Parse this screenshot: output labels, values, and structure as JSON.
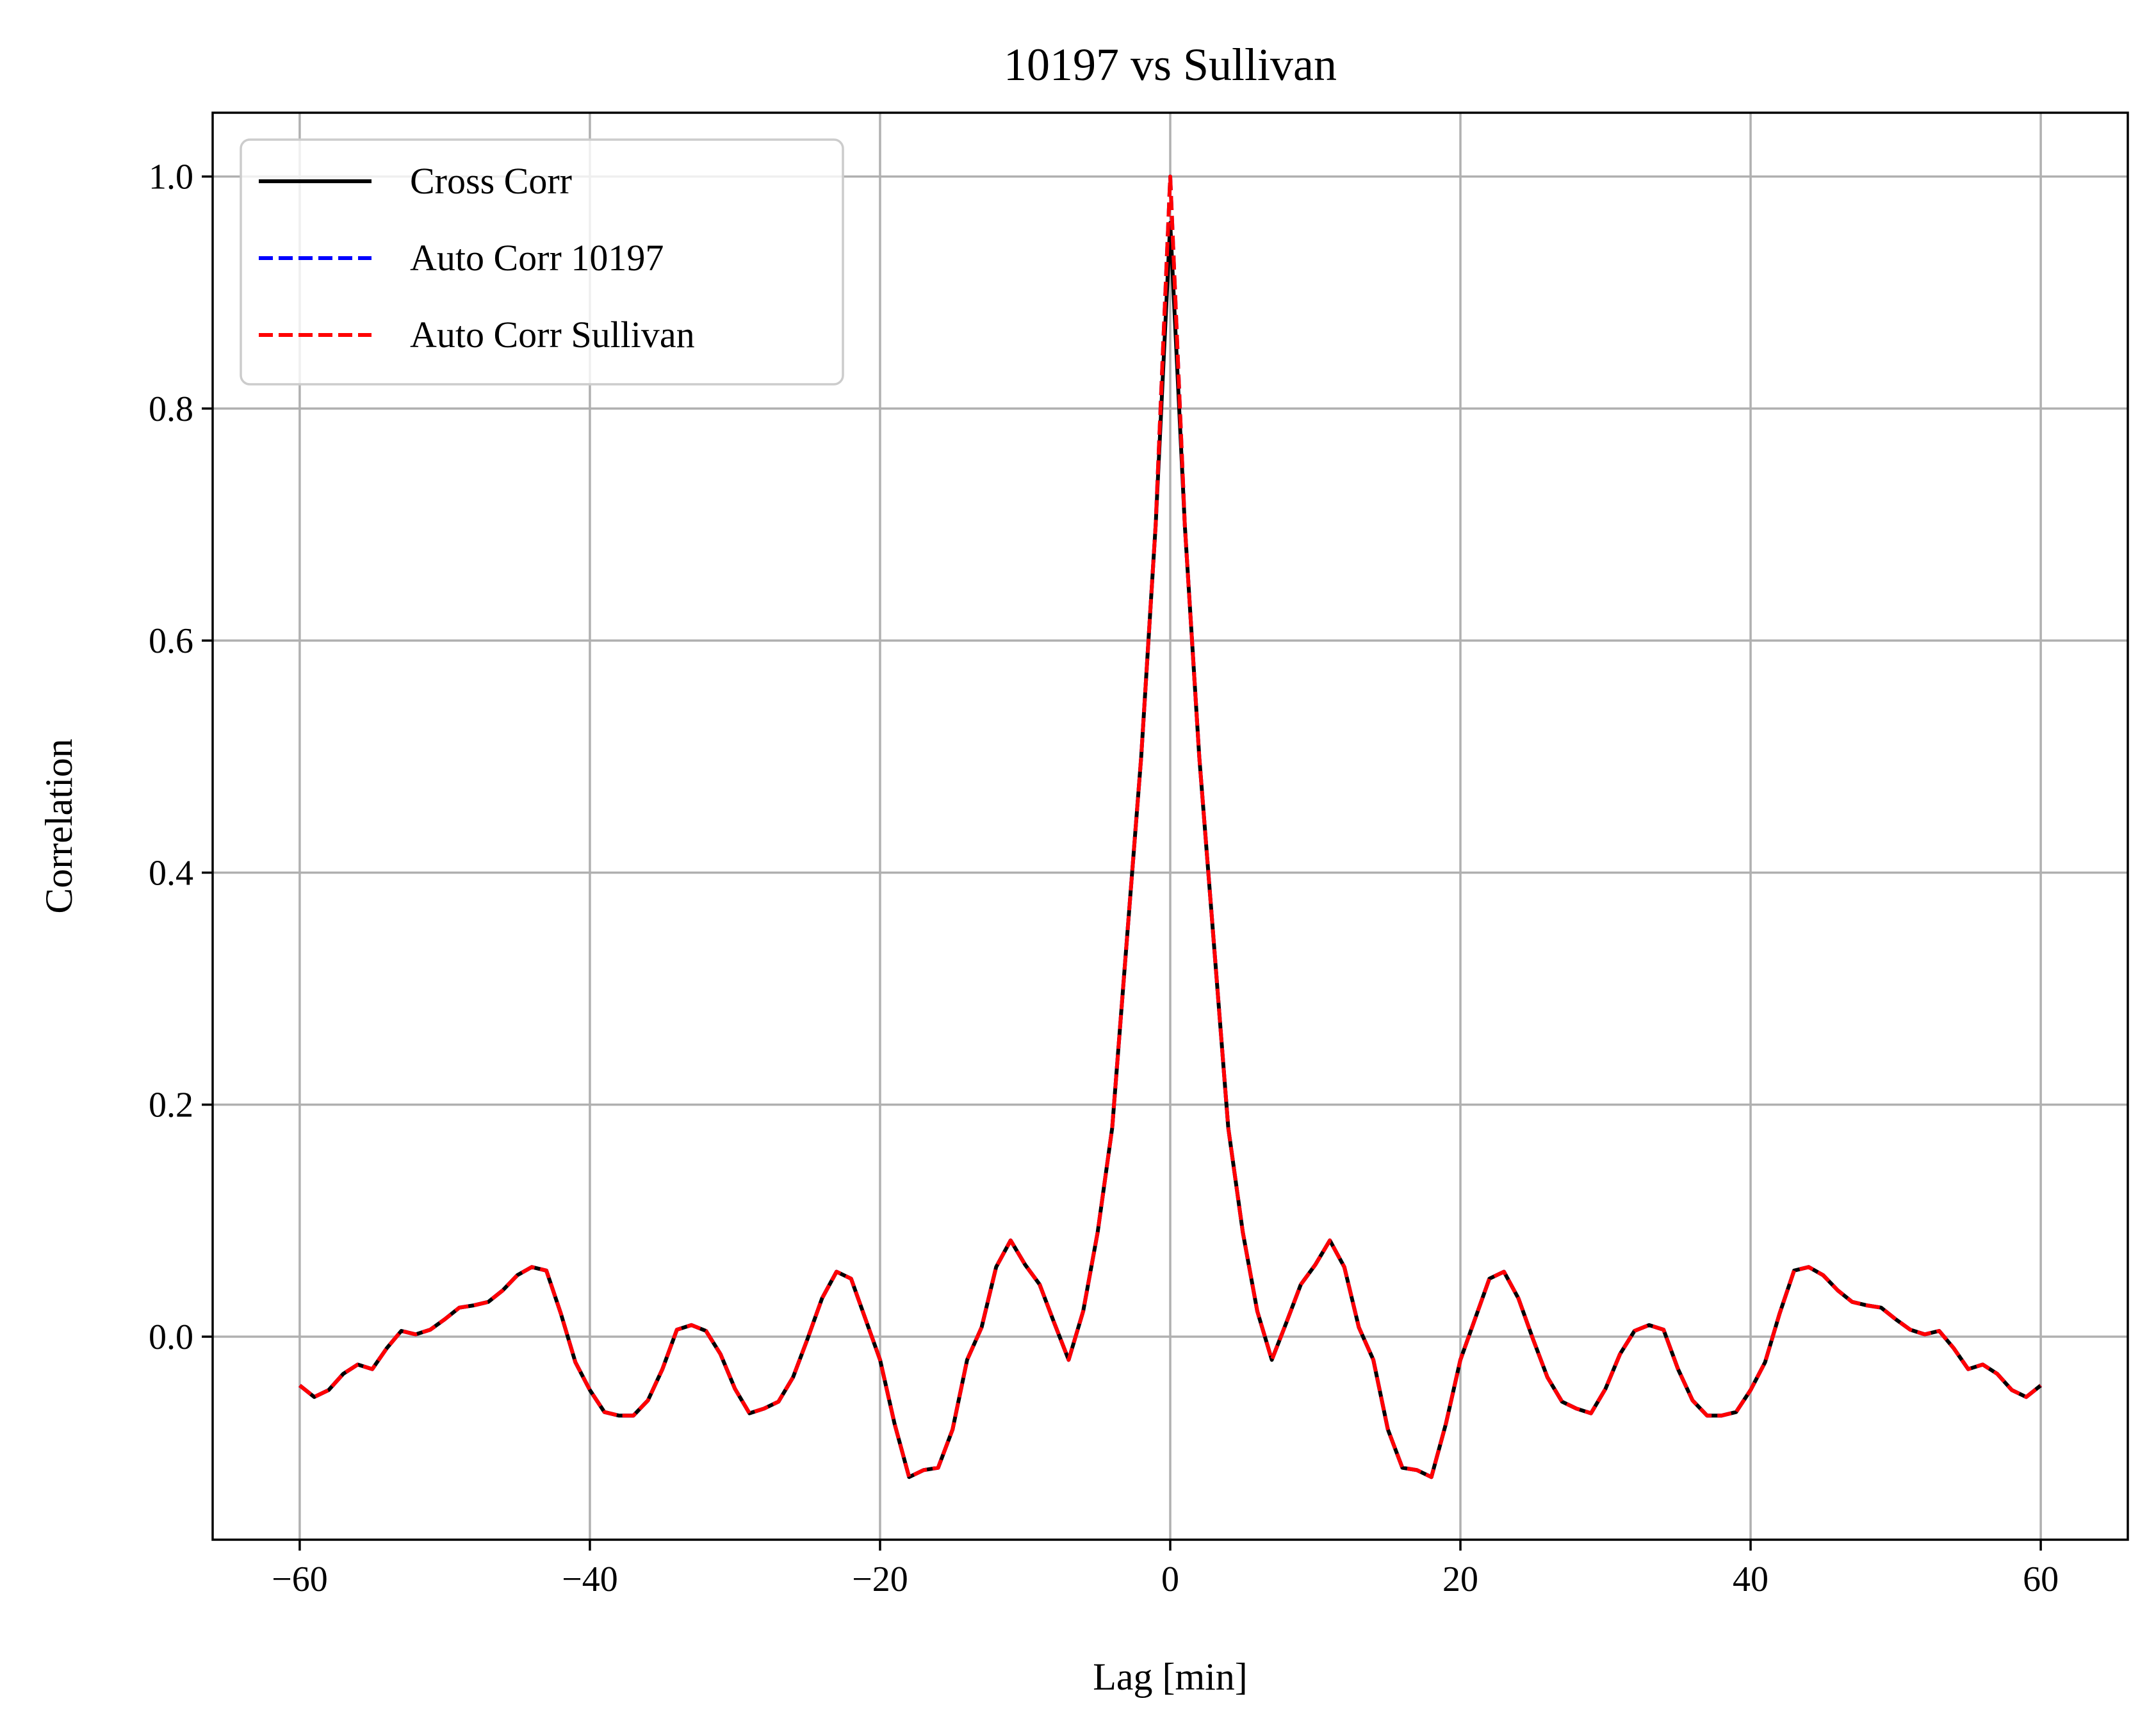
{
  "chart_data": {
    "type": "line",
    "title": "10197 vs Sullivan",
    "xlabel": "Lag [min]",
    "ylabel": "Correlation",
    "xlim": [
      -66,
      66
    ],
    "ylim": [
      -0.175,
      1.055
    ],
    "xticks": [
      -60,
      -40,
      -20,
      0,
      20,
      40,
      60
    ],
    "xtick_labels": [
      "−60",
      "−40",
      "−20",
      "0",
      "20",
      "40",
      "60"
    ],
    "yticks": [
      0.0,
      0.2,
      0.4,
      0.6,
      0.8,
      1.0
    ],
    "ytick_labels": [
      "0.0",
      "0.2",
      "0.4",
      "0.6",
      "0.8",
      "1.0"
    ],
    "grid": true,
    "legend_position": "top-left",
    "x": [
      -60,
      -59,
      -58,
      -57,
      -56,
      -55,
      -54,
      -53,
      -52,
      -51,
      -50,
      -49,
      -48,
      -47,
      -46,
      -45,
      -44,
      -43,
      -42,
      -41,
      -40,
      -39,
      -38,
      -37,
      -36,
      -35,
      -34,
      -33,
      -32,
      -31,
      -30,
      -29,
      -28,
      -27,
      -26,
      -25,
      -24,
      -23,
      -22,
      -21,
      -20,
      -19,
      -18,
      -17,
      -16,
      -15,
      -14,
      -13,
      -12,
      -11,
      -10,
      -9,
      -8,
      -7,
      -6,
      -5,
      -4,
      -3,
      -2,
      -1,
      0,
      1,
      2,
      3,
      4,
      5,
      6,
      7,
      8,
      9,
      10,
      11,
      12,
      13,
      14,
      15,
      16,
      17,
      18,
      19,
      20,
      21,
      22,
      23,
      24,
      25,
      26,
      27,
      28,
      29,
      30,
      31,
      32,
      33,
      34,
      35,
      36,
      37,
      38,
      39,
      40,
      41,
      42,
      43,
      44,
      45,
      46,
      47,
      48,
      49,
      50,
      51,
      52,
      53,
      54,
      55,
      56,
      57,
      58,
      59,
      60
    ],
    "series": [
      {
        "name": "Cross Corr",
        "color": "#000000",
        "style": "solid",
        "values": [
          -0.042,
          -0.052,
          -0.046,
          -0.032,
          -0.024,
          -0.028,
          -0.01,
          0.005,
          0.002,
          0.006,
          0.015,
          0.025,
          0.027,
          0.03,
          0.04,
          0.053,
          0.06,
          0.057,
          0.02,
          -0.022,
          -0.046,
          -0.065,
          -0.068,
          -0.068,
          -0.055,
          -0.028,
          0.006,
          0.01,
          0.005,
          -0.015,
          -0.045,
          -0.066,
          -0.062,
          -0.056,
          -0.035,
          -0.002,
          0.033,
          0.056,
          0.05,
          0.015,
          -0.02,
          -0.075,
          -0.121,
          -0.115,
          -0.113,
          -0.08,
          -0.02,
          0.008,
          0.06,
          0.083,
          0.062,
          0.045,
          0.012,
          -0.02,
          0.022,
          0.09,
          0.18,
          0.34,
          0.5,
          0.7,
          0.96,
          0.7,
          0.5,
          0.34,
          0.18,
          0.09,
          0.022,
          -0.02,
          0.012,
          0.045,
          0.062,
          0.083,
          0.06,
          0.008,
          -0.02,
          -0.08,
          -0.113,
          -0.115,
          -0.121,
          -0.075,
          -0.02,
          0.015,
          0.05,
          0.056,
          0.033,
          -0.002,
          -0.035,
          -0.056,
          -0.062,
          -0.066,
          -0.045,
          -0.015,
          0.005,
          0.01,
          0.006,
          -0.028,
          -0.055,
          -0.068,
          -0.068,
          -0.065,
          -0.046,
          -0.022,
          0.02,
          0.057,
          0.06,
          0.053,
          0.04,
          0.03,
          0.027,
          0.025,
          0.015,
          0.006,
          0.002,
          0.005,
          -0.01,
          -0.028,
          -0.024,
          -0.032,
          -0.046,
          -0.052,
          -0.042
        ]
      },
      {
        "name": "Auto Corr 10197",
        "color": "#0000ff",
        "style": "dashed",
        "values": [
          -0.042,
          -0.052,
          -0.046,
          -0.032,
          -0.024,
          -0.028,
          -0.01,
          0.005,
          0.002,
          0.006,
          0.015,
          0.025,
          0.027,
          0.03,
          0.04,
          0.053,
          0.06,
          0.057,
          0.02,
          -0.022,
          -0.046,
          -0.065,
          -0.068,
          -0.068,
          -0.055,
          -0.028,
          0.006,
          0.01,
          0.005,
          -0.015,
          -0.045,
          -0.066,
          -0.062,
          -0.056,
          -0.035,
          -0.002,
          0.033,
          0.056,
          0.05,
          0.015,
          -0.02,
          -0.075,
          -0.121,
          -0.115,
          -0.113,
          -0.08,
          -0.02,
          0.008,
          0.06,
          0.083,
          0.062,
          0.045,
          0.012,
          -0.02,
          0.022,
          0.09,
          0.18,
          0.34,
          0.5,
          0.7,
          1.0,
          0.7,
          0.5,
          0.34,
          0.18,
          0.09,
          0.022,
          -0.02,
          0.012,
          0.045,
          0.062,
          0.083,
          0.06,
          0.008,
          -0.02,
          -0.08,
          -0.113,
          -0.115,
          -0.121,
          -0.075,
          -0.02,
          0.015,
          0.05,
          0.056,
          0.033,
          -0.002,
          -0.035,
          -0.056,
          -0.062,
          -0.066,
          -0.045,
          -0.015,
          0.005,
          0.01,
          0.006,
          -0.028,
          -0.055,
          -0.068,
          -0.068,
          -0.065,
          -0.046,
          -0.022,
          0.02,
          0.057,
          0.06,
          0.053,
          0.04,
          0.03,
          0.027,
          0.025,
          0.015,
          0.006,
          0.002,
          0.005,
          -0.01,
          -0.028,
          -0.024,
          -0.032,
          -0.046,
          -0.052,
          -0.042
        ]
      },
      {
        "name": "Auto Corr Sullivan",
        "color": "#ff0000",
        "style": "dashed",
        "values": [
          -0.042,
          -0.052,
          -0.046,
          -0.032,
          -0.024,
          -0.028,
          -0.01,
          0.005,
          0.002,
          0.006,
          0.015,
          0.025,
          0.027,
          0.03,
          0.04,
          0.053,
          0.06,
          0.057,
          0.02,
          -0.022,
          -0.046,
          -0.065,
          -0.068,
          -0.068,
          -0.055,
          -0.028,
          0.006,
          0.01,
          0.005,
          -0.015,
          -0.045,
          -0.066,
          -0.062,
          -0.056,
          -0.035,
          -0.002,
          0.033,
          0.056,
          0.05,
          0.015,
          -0.02,
          -0.075,
          -0.121,
          -0.115,
          -0.113,
          -0.08,
          -0.02,
          0.008,
          0.06,
          0.083,
          0.062,
          0.045,
          0.012,
          -0.02,
          0.022,
          0.09,
          0.18,
          0.34,
          0.5,
          0.7,
          1.0,
          0.7,
          0.5,
          0.34,
          0.18,
          0.09,
          0.022,
          -0.02,
          0.012,
          0.045,
          0.062,
          0.083,
          0.06,
          0.008,
          -0.02,
          -0.08,
          -0.113,
          -0.115,
          -0.121,
          -0.075,
          -0.02,
          0.015,
          0.05,
          0.056,
          0.033,
          -0.002,
          -0.035,
          -0.056,
          -0.062,
          -0.066,
          -0.045,
          -0.015,
          0.005,
          0.01,
          0.006,
          -0.028,
          -0.055,
          -0.068,
          -0.068,
          -0.065,
          -0.046,
          -0.022,
          0.02,
          0.057,
          0.06,
          0.053,
          0.04,
          0.03,
          0.027,
          0.025,
          0.015,
          0.006,
          0.002,
          0.005,
          -0.01,
          -0.028,
          -0.024,
          -0.032,
          -0.046,
          -0.052,
          -0.042
        ]
      }
    ]
  }
}
